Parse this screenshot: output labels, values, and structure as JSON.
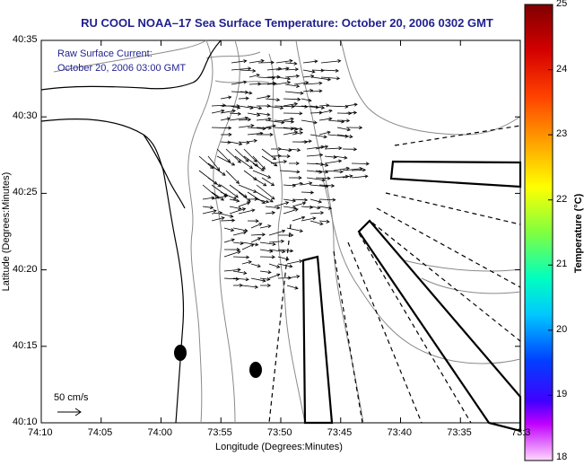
{
  "title": "RU COOL  NOAA–17  Sea Surface Temperature:  October 20, 2006 0302 GMT",
  "annotation": {
    "line1": "Raw Surface Current:",
    "line2": "October 20, 2006 03:00 GMT"
  },
  "x_axis": {
    "label": "Longitude (Degrees:Minutes)",
    "ticks": [
      "74:10",
      "74:05",
      "74:00",
      "73:55",
      "73:50",
      "73:45",
      "73:40",
      "73:35",
      "73:3"
    ]
  },
  "y_axis": {
    "label": "Latitude (Degrees:Minutes)",
    "ticks": [
      "40:35",
      "40:30",
      "40:25",
      "40:20",
      "40:15",
      "40:10"
    ]
  },
  "colorbar": {
    "label": "Temperature (°C)",
    "ticks": [
      "25",
      "24",
      "23",
      "22",
      "21",
      "20",
      "19",
      "18"
    ],
    "colors": [
      "#8b0000",
      "#ff0000",
      "#ff8c00",
      "#ffff00",
      "#7fff00",
      "#00ffff",
      "#0000ff",
      "#ff00ff",
      "#ffd0ff"
    ]
  },
  "scale_arrow": {
    "label": "50 cm/s"
  },
  "colors": {
    "title": "#1f1f8f",
    "land_outline": "#000000",
    "bathymetry": "#8a8a8a",
    "vectors": "#000000"
  }
}
